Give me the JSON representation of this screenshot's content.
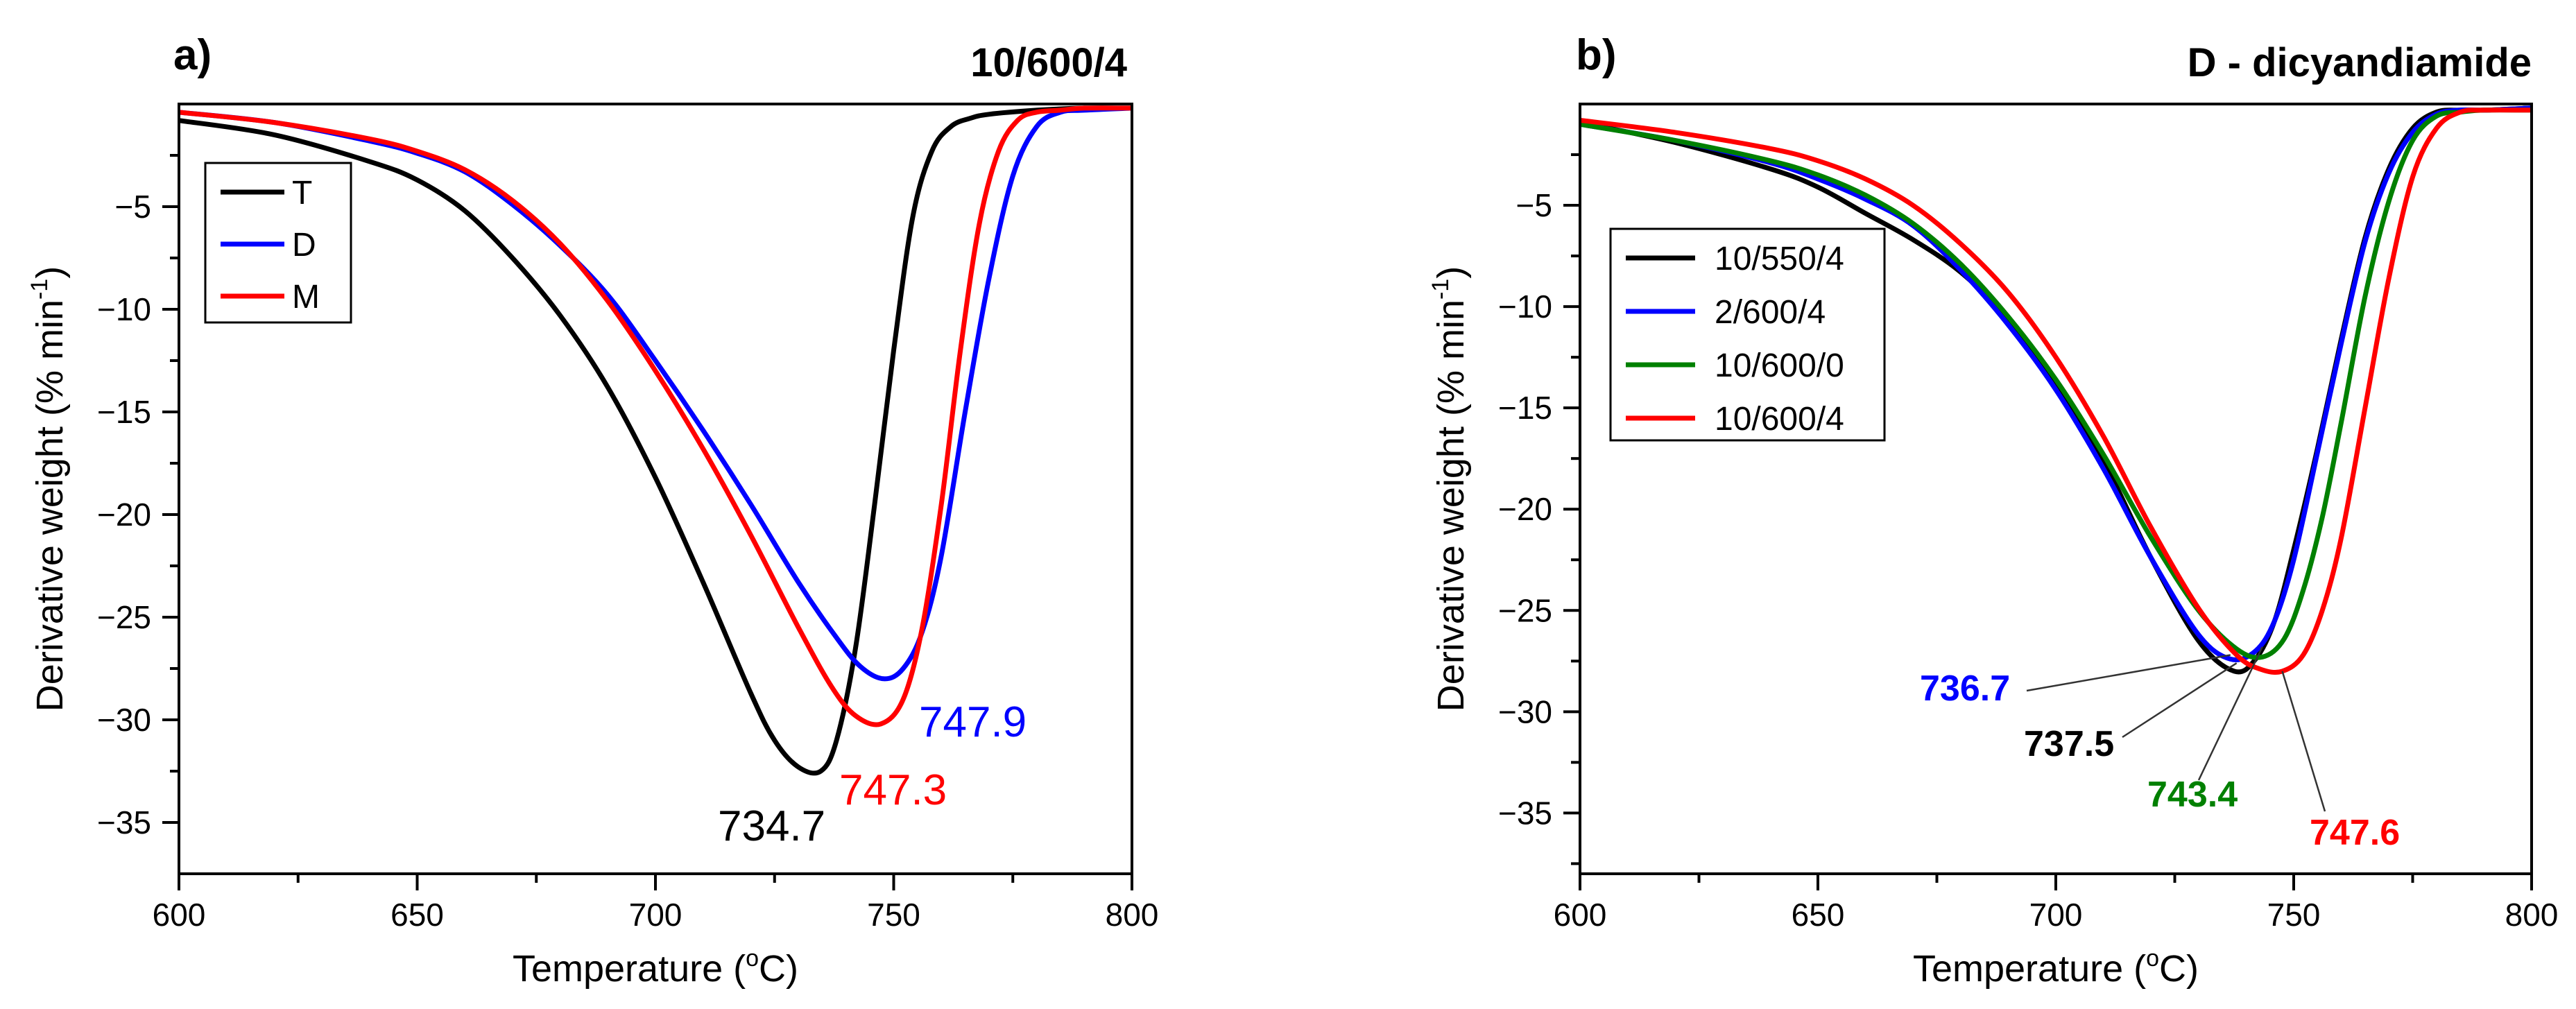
{
  "chart_data": [
    {
      "type": "line",
      "panel_label": "a)",
      "title": "10/600/4",
      "xlabel": "Temperature (",
      "xlabel_sup": "o",
      "xlabel_end": "C)",
      "ylabel": "Derivative weight (% min",
      "ylabel_sup": "-1",
      "ylabel_end": ")",
      "xlim": [
        600,
        800
      ],
      "ylim": [
        -37.5,
        0
      ],
      "xticks": [
        600,
        650,
        700,
        750,
        800
      ],
      "xtick_labels": [
        "600",
        "650",
        "700",
        "750",
        "800"
      ],
      "yticks": [
        -5,
        -10,
        -15,
        -20,
        -25,
        -30,
        -35
      ],
      "ytick_labels": [
        "−5",
        "−10",
        "−15",
        "−20",
        "−25",
        "−30",
        "−35"
      ],
      "legend_position": "top-left",
      "series": [
        {
          "name": "T",
          "color": "#000000",
          "x": [
            600,
            620,
            640,
            650,
            660,
            670,
            680,
            690,
            700,
            710,
            720,
            725,
            730,
            734.7,
            738,
            742,
            746,
            750,
            754,
            758,
            762,
            766,
            770,
            780,
            790,
            800
          ],
          "y": [
            -0.8,
            -1.5,
            -2.8,
            -3.7,
            -5.2,
            -7.5,
            -10.3,
            -13.8,
            -18.2,
            -23.3,
            -28.7,
            -31.0,
            -32.3,
            -32.5,
            -31.0,
            -26.5,
            -19.5,
            -12.0,
            -5.5,
            -2.3,
            -1.1,
            -0.7,
            -0.5,
            -0.3,
            -0.2,
            -0.2
          ]
        },
        {
          "name": "D",
          "color": "#0000ff",
          "x": [
            600,
            620,
            640,
            650,
            660,
            670,
            680,
            690,
            700,
            710,
            720,
            730,
            738,
            743,
            747.9,
            752,
            756,
            760,
            765,
            770,
            775,
            780,
            785,
            790,
            800
          ],
          "y": [
            -0.4,
            -0.9,
            -1.8,
            -2.4,
            -3.3,
            -4.9,
            -6.9,
            -9.3,
            -12.5,
            -15.9,
            -19.5,
            -23.3,
            -26.0,
            -27.4,
            -28.0,
            -27.5,
            -25.7,
            -22.0,
            -15.0,
            -8.5,
            -3.5,
            -1.1,
            -0.4,
            -0.3,
            -0.2
          ]
        },
        {
          "name": "M",
          "color": "#ff0000",
          "x": [
            600,
            620,
            640,
            650,
            660,
            670,
            680,
            690,
            700,
            710,
            720,
            730,
            737,
            742,
            747.3,
            752,
            756,
            760,
            764,
            768,
            772,
            776,
            780,
            785,
            790,
            800
          ],
          "y": [
            -0.4,
            -0.9,
            -1.7,
            -2.3,
            -3.2,
            -4.7,
            -6.8,
            -9.6,
            -13.0,
            -16.8,
            -21.0,
            -25.5,
            -28.4,
            -29.8,
            -30.2,
            -29.0,
            -25.5,
            -19.5,
            -12.0,
            -5.8,
            -2.3,
            -0.8,
            -0.4,
            -0.3,
            -0.2,
            -0.2
          ]
        }
      ],
      "annotations": [
        {
          "text": "734.7",
          "color": "#000000"
        },
        {
          "text": "747.3",
          "color": "#ff0000"
        },
        {
          "text": "747.9",
          "color": "#0000ff"
        }
      ]
    },
    {
      "type": "line",
      "panel_label": "b)",
      "title": "D - dicyandiamide",
      "xlabel": "Temperature (",
      "xlabel_sup": "o",
      "xlabel_end": "C)",
      "ylabel": "Derivative weight (% min",
      "ylabel_sup": "-1",
      "ylabel_end": ")",
      "xlim": [
        600,
        800
      ],
      "ylim": [
        -38,
        0
      ],
      "xticks": [
        600,
        650,
        700,
        750,
        800
      ],
      "xtick_labels": [
        "600",
        "650",
        "700",
        "750",
        "800"
      ],
      "yticks": [
        -5,
        -10,
        -15,
        -20,
        -25,
        -30,
        -35
      ],
      "ytick_labels": [
        "−5",
        "−10",
        "−15",
        "−20",
        "−25",
        "−30",
        "−35"
      ],
      "legend_position": "top-left",
      "series": [
        {
          "name": "10/550/4",
          "color": "#000000",
          "x": [
            600,
            620,
            640,
            650,
            660,
            670,
            680,
            690,
            700,
            710,
            720,
            730,
            737.5,
            742,
            746,
            750,
            755,
            760,
            765,
            770,
            775,
            780,
            785,
            790,
            800
          ],
          "y": [
            -0.9,
            -1.9,
            -3.2,
            -4.1,
            -5.4,
            -6.7,
            -8.3,
            -10.6,
            -13.7,
            -17.6,
            -22.4,
            -26.5,
            -28.0,
            -27.4,
            -25.5,
            -22.0,
            -17.0,
            -11.6,
            -6.6,
            -3.2,
            -1.2,
            -0.4,
            -0.3,
            -0.3,
            -0.2
          ]
        },
        {
          "name": "2/600/4",
          "color": "#0000ff",
          "x": [
            600,
            620,
            640,
            650,
            660,
            670,
            680,
            690,
            700,
            710,
            720,
            730,
            736.7,
            742,
            746,
            750,
            755,
            760,
            765,
            770,
            775,
            780,
            785,
            790,
            800
          ],
          "y": [
            -1.0,
            -1.8,
            -2.9,
            -3.7,
            -4.7,
            -6.0,
            -8.2,
            -10.9,
            -14.1,
            -18.0,
            -22.4,
            -26.2,
            -27.4,
            -27.0,
            -25.5,
            -22.5,
            -17.2,
            -11.8,
            -6.8,
            -3.4,
            -1.4,
            -0.5,
            -0.3,
            -0.3,
            -0.2
          ]
        },
        {
          "name": "10/600/0",
          "color": "#008000",
          "x": [
            600,
            620,
            640,
            650,
            660,
            670,
            680,
            690,
            700,
            710,
            720,
            730,
            738,
            743.4,
            748,
            752,
            756,
            760,
            765,
            770,
            775,
            780,
            785,
            790,
            800
          ],
          "y": [
            -1.0,
            -1.8,
            -2.8,
            -3.5,
            -4.5,
            -5.9,
            -7.9,
            -10.5,
            -13.6,
            -17.3,
            -21.4,
            -25.0,
            -26.9,
            -27.3,
            -26.4,
            -24.0,
            -20.4,
            -15.7,
            -9.5,
            -4.8,
            -1.8,
            -0.6,
            -0.4,
            -0.3,
            -0.3
          ]
        },
        {
          "name": "10/600/4",
          "color": "#ff0000",
          "x": [
            600,
            620,
            640,
            650,
            660,
            670,
            680,
            690,
            700,
            710,
            720,
            730,
            738,
            743,
            747.6,
            752,
            756,
            760,
            765,
            770,
            775,
            780,
            785,
            790,
            800
          ],
          "y": [
            -0.8,
            -1.4,
            -2.2,
            -2.8,
            -3.7,
            -5.0,
            -6.9,
            -9.3,
            -12.5,
            -16.4,
            -20.9,
            -24.9,
            -27.2,
            -27.9,
            -28.0,
            -27.2,
            -25.0,
            -21.4,
            -15.0,
            -8.6,
            -3.6,
            -1.2,
            -0.4,
            -0.3,
            -0.3
          ]
        }
      ],
      "annotations": [
        {
          "text": "736.7",
          "color": "#0000ff",
          "point_x": 736.7,
          "point_y": -27.2
        },
        {
          "text": "737.5",
          "color": "#000000",
          "point_x": 738.0,
          "point_y": -27.6
        },
        {
          "text": "743.4",
          "color": "#008000",
          "point_x": 743.4,
          "point_y": -26.8
        },
        {
          "text": "747.6",
          "color": "#ff0000",
          "point_x": 747.6,
          "point_y": -28.0
        }
      ]
    }
  ]
}
